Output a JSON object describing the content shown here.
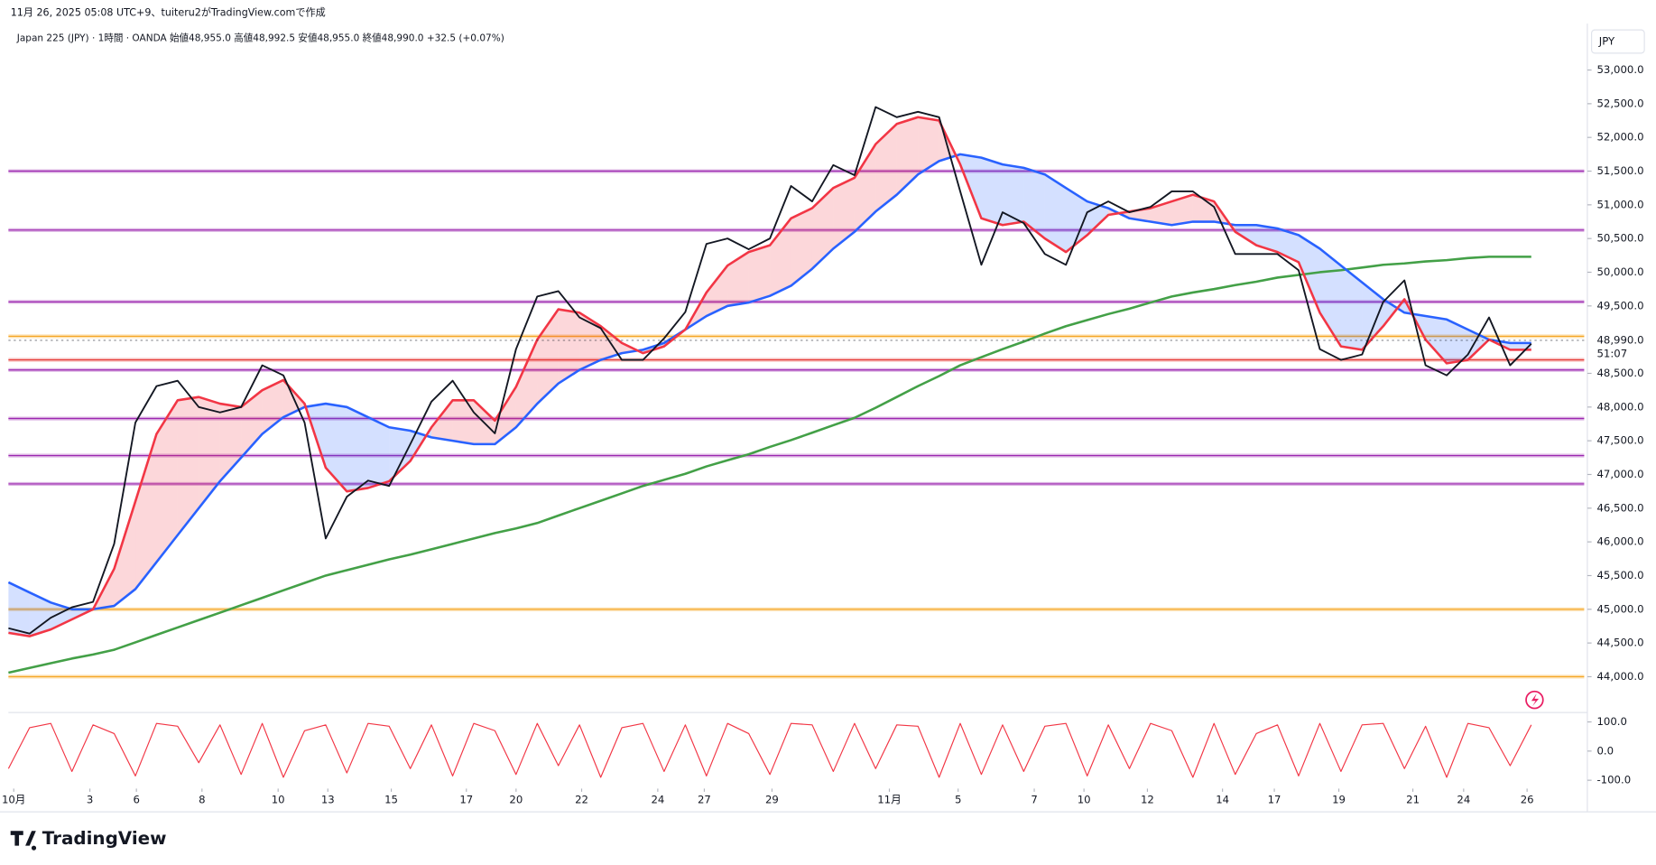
{
  "attribution": "11月 26, 2025 05:08 UTC+9、tuiteru2がTradingView.comで作成",
  "logo": "TradingView",
  "chart_data": [
    {
      "type": "line",
      "title": "Japan 225 (JPY) · 1時間 · OANDA  始値48,955.0  高値48,992.5  安値48,955.0  終値48,990.0  +32.5 (+0.07%)",
      "currency": "JPY",
      "grid": false,
      "xlim": [
        0,
        74.5
      ],
      "xticks": [
        {
          "value": 0.25,
          "label": "10月"
        },
        {
          "value": 3.85,
          "label": "3"
        },
        {
          "value": 6.05,
          "label": "6"
        },
        {
          "value": 9.15,
          "label": "8"
        },
        {
          "value": 12.75,
          "label": "10"
        },
        {
          "value": 15.1,
          "label": "13"
        },
        {
          "value": 18.1,
          "label": "15"
        },
        {
          "value": 21.65,
          "label": "17"
        },
        {
          "value": 24,
          "label": "20"
        },
        {
          "value": 27.1,
          "label": "22"
        },
        {
          "value": 30.7,
          "label": "24"
        },
        {
          "value": 32.9,
          "label": "27"
        },
        {
          "value": 36.1,
          "label": "29"
        },
        {
          "value": 41.65,
          "label": "11月"
        },
        {
          "value": 44.9,
          "label": "5"
        },
        {
          "value": 48.5,
          "label": "7"
        },
        {
          "value": 50.85,
          "label": "10"
        },
        {
          "value": 53.85,
          "label": "12"
        },
        {
          "value": 57.4,
          "label": "14"
        },
        {
          "value": 59.85,
          "label": "17"
        },
        {
          "value": 62.9,
          "label": "19"
        },
        {
          "value": 66.4,
          "label": "21"
        },
        {
          "value": 68.8,
          "label": "24"
        },
        {
          "value": 71.8,
          "label": "26"
        }
      ],
      "ylim": [
        43500,
        53250
      ],
      "yticks": [
        {
          "value": 53000,
          "label": "53,000.0"
        },
        {
          "value": 52500,
          "label": "52,500.0"
        },
        {
          "value": 52000,
          "label": "52,000.0"
        },
        {
          "value": 51500,
          "label": "51,500.0"
        },
        {
          "value": 51000,
          "label": "51,000.0"
        },
        {
          "value": 50500,
          "label": "50,500.0"
        },
        {
          "value": 50000,
          "label": "50,000.0"
        },
        {
          "value": 49500,
          "label": "49,500.0"
        },
        {
          "value": 48500,
          "label": "48,500.0"
        },
        {
          "value": 48000,
          "label": "48,000.0"
        },
        {
          "value": 47500,
          "label": "47,500.0"
        },
        {
          "value": 47000,
          "label": "47,000.0"
        },
        {
          "value": 46500,
          "label": "46,500.0"
        },
        {
          "value": 46000,
          "label": "46,000.0"
        },
        {
          "value": 45500,
          "label": "45,500.0"
        },
        {
          "value": 45000,
          "label": "45,000.0"
        },
        {
          "value": 44500,
          "label": "44,500.0"
        },
        {
          "value": 44000,
          "label": "44,000.0"
        }
      ],
      "last_price": {
        "value": 48990,
        "label": "48,990.0"
      },
      "countdown": "51:07",
      "levels": [
        {
          "value": 51500,
          "color": "#9c27b0"
        },
        {
          "value": 50625,
          "color": "#9c27b0"
        },
        {
          "value": 49560,
          "color": "#9c27b0"
        },
        {
          "value": 49050,
          "color": "#f5a623"
        },
        {
          "value": 48700,
          "color": "#e53935"
        },
        {
          "value": 48550,
          "color": "#9c27b0"
        },
        {
          "value": 47830,
          "color": "#9c27b0"
        },
        {
          "value": 47280,
          "color": "#9c27b0"
        },
        {
          "value": 46860,
          "color": "#9c27b0"
        },
        {
          "value": 45000,
          "color": "#f5a623"
        },
        {
          "value": 44000,
          "color": "#f5a623"
        }
      ],
      "cloud": {
        "between": [
          2,
          1
        ],
        "colors": [
          "rgba(242,54,69,0.2)",
          "rgba(41,98,255,0.2)"
        ]
      },
      "x": [
        0,
        1,
        2,
        3,
        4,
        5,
        6,
        7,
        8,
        9,
        10,
        11,
        12,
        13,
        14,
        15,
        16,
        17,
        18,
        19,
        20,
        21,
        22,
        23,
        24,
        25,
        26,
        27,
        28,
        29,
        30,
        31,
        32,
        33,
        34,
        35,
        36,
        37,
        38,
        39,
        40,
        41,
        42,
        43,
        44,
        45,
        46,
        47,
        48,
        49,
        50,
        51,
        52,
        53,
        54,
        55,
        56,
        57,
        58,
        59,
        60,
        61,
        62,
        63,
        64,
        65,
        66,
        67,
        68,
        69,
        70,
        71,
        72
      ],
      "series": [
        {
          "color": "#43a047",
          "width": 2.2,
          "values": [
            44060,
            44130,
            44200,
            44270,
            44330,
            44400,
            44510,
            44620,
            44730,
            44840,
            44950,
            45060,
            45170,
            45280,
            45390,
            45500,
            45580,
            45660,
            45740,
            45810,
            45890,
            45970,
            46050,
            46130,
            46200,
            46280,
            46390,
            46500,
            46610,
            46720,
            46830,
            46920,
            47010,
            47120,
            47210,
            47300,
            47410,
            47510,
            47620,
            47730,
            47840,
            47990,
            48150,
            48310,
            48460,
            48620,
            48740,
            48860,
            48970,
            49090,
            49200,
            49290,
            49380,
            49460,
            49550,
            49640,
            49700,
            49750,
            49810,
            49860,
            49920,
            49960,
            50000,
            50030,
            50070,
            50110,
            50130,
            50160,
            50180,
            50210,
            50230,
            50230,
            50230
          ]
        },
        {
          "color": "#2962ff",
          "width": 2.2,
          "values": [
            45400,
            45250,
            45100,
            45000,
            45000,
            45050,
            45300,
            45700,
            46100,
            46500,
            46900,
            47250,
            47600,
            47850,
            48000,
            48050,
            48000,
            47850,
            47700,
            47650,
            47550,
            47500,
            47450,
            47450,
            47700,
            48050,
            48350,
            48550,
            48700,
            48800,
            48850,
            48950,
            49150,
            49350,
            49500,
            49550,
            49650,
            49800,
            50050,
            50350,
            50600,
            50900,
            51150,
            51450,
            51650,
            51750,
            51700,
            51600,
            51550,
            51450,
            51250,
            51050,
            50950,
            50800,
            50750,
            50700,
            50750,
            50750,
            50700,
            50700,
            50650,
            50550,
            50350,
            50100,
            49850,
            49600,
            49400,
            49350,
            49300,
            49150,
            49000,
            48950,
            48950
          ]
        },
        {
          "color": "#f23645",
          "width": 2.2,
          "values": [
            44650,
            44600,
            44700,
            44850,
            45000,
            45600,
            46600,
            47600,
            48100,
            48150,
            48050,
            48000,
            48250,
            48400,
            48050,
            47100,
            46750,
            46800,
            46900,
            47200,
            47700,
            48100,
            48100,
            47800,
            48300,
            49000,
            49450,
            49400,
            49200,
            48950,
            48800,
            48900,
            49150,
            49700,
            50100,
            50300,
            50400,
            50800,
            50950,
            51250,
            51400,
            51900,
            52200,
            52300,
            52250,
            51600,
            50800,
            50700,
            50750,
            50500,
            50300,
            50550,
            50850,
            50900,
            50950,
            51050,
            51150,
            51050,
            50600,
            50400,
            50300,
            50150,
            49400,
            48900,
            48850,
            49200,
            49600,
            49000,
            48650,
            48700,
            49000,
            48850,
            48850
          ]
        },
        {
          "color": "#131722",
          "width": 1.6,
          "values": [
            44720,
            44640,
            44875,
            45030,
            45110,
            45970,
            47770,
            48310,
            48390,
            48000,
            47920,
            48000,
            48620,
            48470,
            47770,
            46050,
            46670,
            46910,
            46830,
            47450,
            48080,
            48390,
            47920,
            47610,
            48860,
            49640,
            49720,
            49330,
            49170,
            48700,
            48700,
            49020,
            49410,
            50420,
            50500,
            50340,
            50500,
            51280,
            51050,
            51590,
            51440,
            52450,
            52300,
            52380,
            52300,
            51200,
            50110,
            50890,
            50730,
            50270,
            50110,
            50890,
            51050,
            50890,
            50970,
            51200,
            51200,
            50970,
            50270,
            50270,
            50270,
            50030,
            48860,
            48700,
            48780,
            49560,
            49880,
            48620,
            48470,
            48780,
            49330,
            48620,
            48940
          ]
        }
      ]
    },
    {
      "type": "line",
      "grid": false,
      "xlim": [
        0,
        74.5
      ],
      "ylim": [
        -125,
        125
      ],
      "yticks": [
        {
          "value": 100,
          "label": "100.0"
        },
        {
          "value": 0,
          "label": "0.0"
        },
        {
          "value": -100,
          "label": "-100.0"
        }
      ],
      "x": [
        0,
        1,
        2,
        3,
        4,
        5,
        6,
        7,
        8,
        9,
        10,
        11,
        12,
        13,
        14,
        15,
        16,
        17,
        18,
        19,
        20,
        21,
        22,
        23,
        24,
        25,
        26,
        27,
        28,
        29,
        30,
        31,
        32,
        33,
        34,
        35,
        36,
        37,
        38,
        39,
        40,
        41,
        42,
        43,
        44,
        45,
        46,
        47,
        48,
        49,
        50,
        51,
        52,
        53,
        54,
        55,
        56,
        57,
        58,
        59,
        60,
        61,
        62,
        63,
        64,
        65,
        66,
        67,
        68,
        69,
        70,
        71,
        72
      ],
      "series": [
        {
          "color": "#f23645",
          "width": 1,
          "values": [
            -60,
            80,
            95,
            -70,
            90,
            60,
            -85,
            95,
            85,
            -40,
            90,
            -80,
            95,
            -90,
            70,
            90,
            -75,
            95,
            85,
            -60,
            90,
            -85,
            95,
            70,
            -80,
            95,
            -50,
            90,
            -90,
            80,
            95,
            -70,
            90,
            -85,
            95,
            60,
            -80,
            95,
            90,
            -70,
            95,
            -60,
            90,
            85,
            -90,
            95,
            -80,
            90,
            -70,
            85,
            95,
            -85,
            90,
            -60,
            95,
            70,
            -90,
            95,
            -80,
            60,
            90,
            -85,
            95,
            -70,
            90,
            95,
            -60,
            85,
            -90,
            95,
            80,
            -50,
            90
          ]
        }
      ]
    }
  ]
}
